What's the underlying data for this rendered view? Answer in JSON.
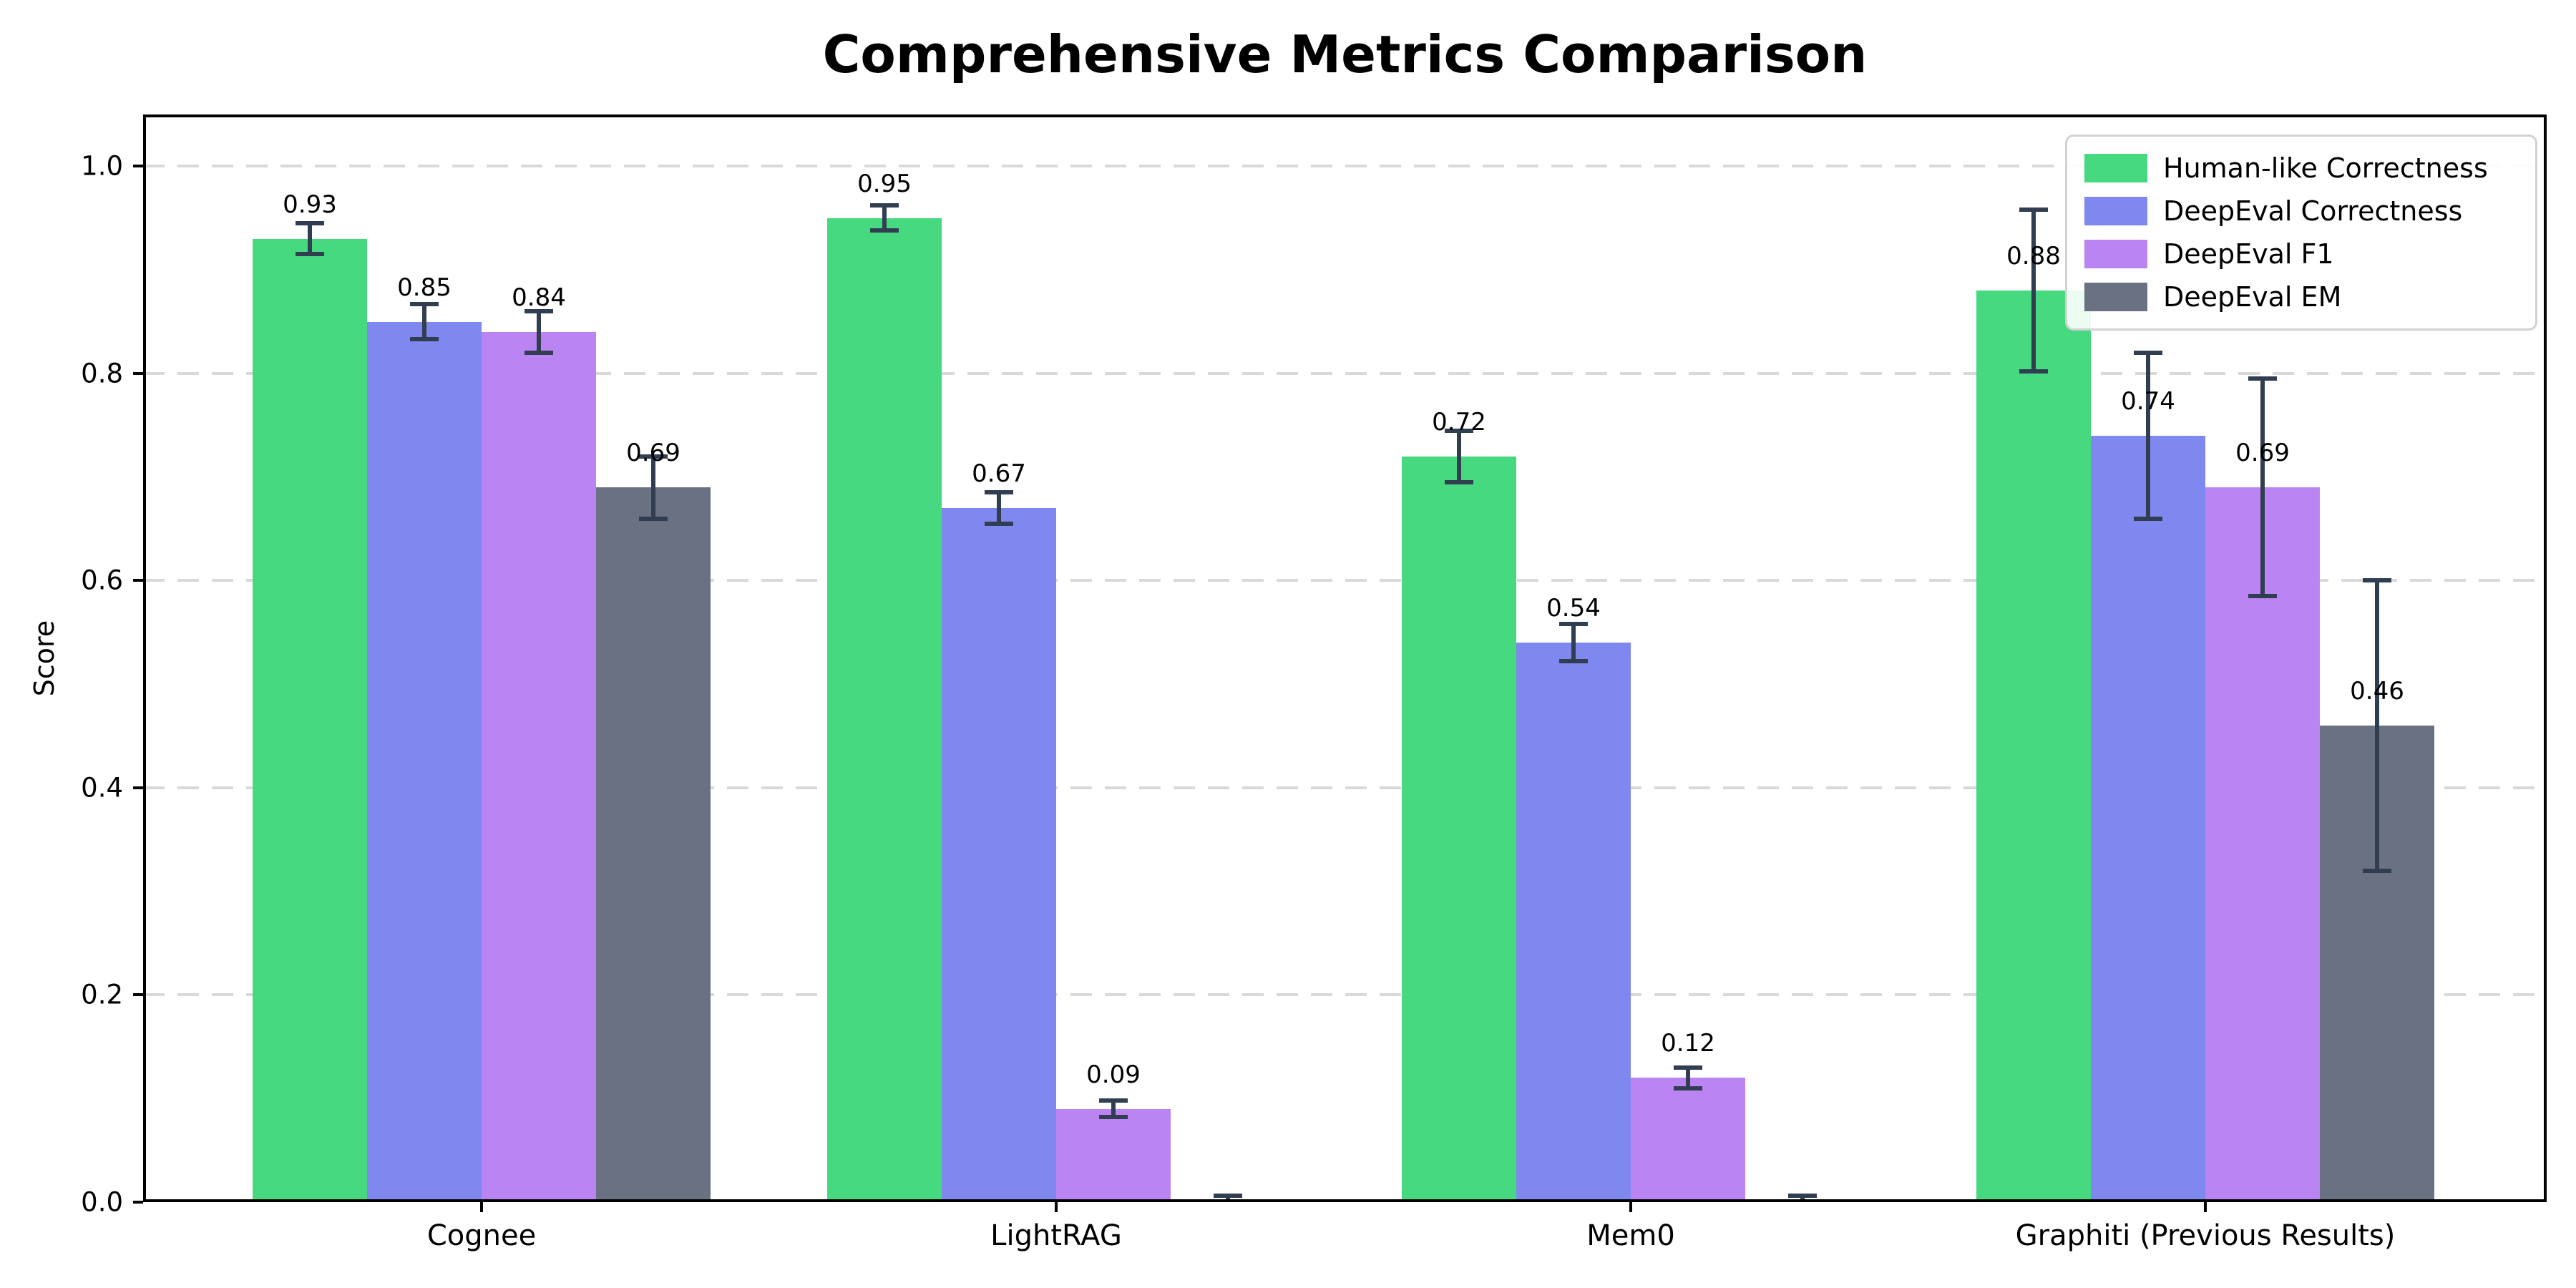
{
  "chart_data": {
    "type": "bar",
    "title": "Comprehensive Metrics Comparison",
    "ylabel": "Score",
    "xlabel": "",
    "categories": [
      "Cognee",
      "LightRAG",
      "Mem0",
      "Graphiti (Previous Results)"
    ],
    "series": [
      {
        "name": "Human-like Correctness",
        "color": "#47d97f",
        "values": [
          0.93,
          0.95,
          0.72,
          0.88
        ],
        "errors": [
          0.015,
          0.012,
          0.025,
          0.078
        ],
        "labels": [
          "0.93",
          "0.95",
          "0.72",
          "0.88"
        ]
      },
      {
        "name": "DeepEval Correctness",
        "color": "#7f88ef",
        "values": [
          0.85,
          0.67,
          0.54,
          0.74
        ],
        "errors": [
          0.017,
          0.015,
          0.018,
          0.08
        ],
        "labels": [
          "0.85",
          "0.67",
          "0.54",
          "0.74"
        ]
      },
      {
        "name": "DeepEval F1",
        "color": "#bb84f3",
        "values": [
          0.84,
          0.09,
          0.12,
          0.69
        ],
        "errors": [
          0.02,
          0.008,
          0.01,
          0.105
        ],
        "labels": [
          "0.84",
          "0.09",
          "0.12",
          "0.69"
        ]
      },
      {
        "name": "DeepEval EM",
        "color": "#697183",
        "values": [
          0.69,
          0.0,
          0.0,
          0.46
        ],
        "errors": [
          0.03,
          0.006,
          0.006,
          0.14
        ],
        "labels": [
          "0.69",
          "",
          "",
          "0.46"
        ]
      }
    ],
    "yticks": [
      {
        "label": "0.0",
        "value": 0.0
      },
      {
        "label": "0.2",
        "value": 0.2
      },
      {
        "label": "0.4",
        "value": 0.4
      },
      {
        "label": "0.6",
        "value": 0.6
      },
      {
        "label": "0.8",
        "value": 0.8
      },
      {
        "label": "1.0",
        "value": 1.0
      }
    ],
    "ylim": [
      0,
      1.05
    ],
    "grid": "dashed-horizontal",
    "legend_position": "upper-right",
    "error_bar_color": "#313e52",
    "gridline_color": "#d9d9d9"
  }
}
